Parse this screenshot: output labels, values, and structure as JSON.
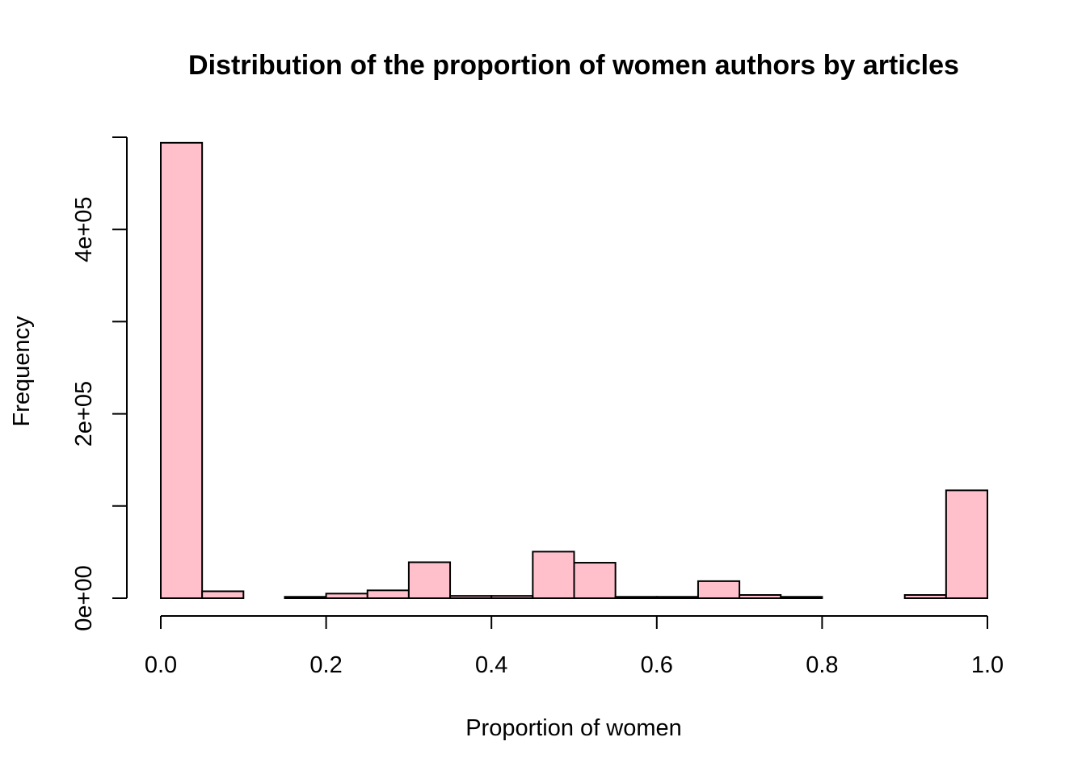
{
  "chart_data": {
    "type": "bar",
    "title": "Distribution of the proportion of women authors by articles",
    "xlabel": "Proportion of women",
    "ylabel": "Frequency",
    "bar_color": "#ffc0cb",
    "border_color": "#000000",
    "bin_edges": [
      0.0,
      0.05,
      0.1,
      0.15,
      0.2,
      0.25,
      0.3,
      0.35,
      0.4,
      0.45,
      0.5,
      0.55,
      0.6,
      0.65,
      0.7,
      0.75,
      0.8,
      0.85,
      0.9,
      0.95,
      1.0
    ],
    "values": [
      494000,
      7500,
      0,
      1500,
      5000,
      8500,
      39000,
      2500,
      2500,
      50500,
      38500,
      1500,
      1500,
      18500,
      3500,
      1500,
      0,
      0,
      3500,
      117000
    ],
    "xlim": [
      0,
      1
    ],
    "ylim": [
      0,
      500000
    ],
    "x_ticks": [
      "0.0",
      "0.2",
      "0.4",
      "0.6",
      "0.8",
      "1.0"
    ],
    "x_tick_values": [
      0,
      0.2,
      0.4,
      0.6,
      0.8,
      1.0
    ],
    "y_ticks": [
      "0e+00",
      "2e+05",
      "4e+05"
    ],
    "y_tick_values": [
      0,
      200000,
      400000
    ],
    "y_minor_tick_values": [
      0,
      100000,
      200000,
      300000,
      400000,
      500000
    ],
    "grid": false
  }
}
